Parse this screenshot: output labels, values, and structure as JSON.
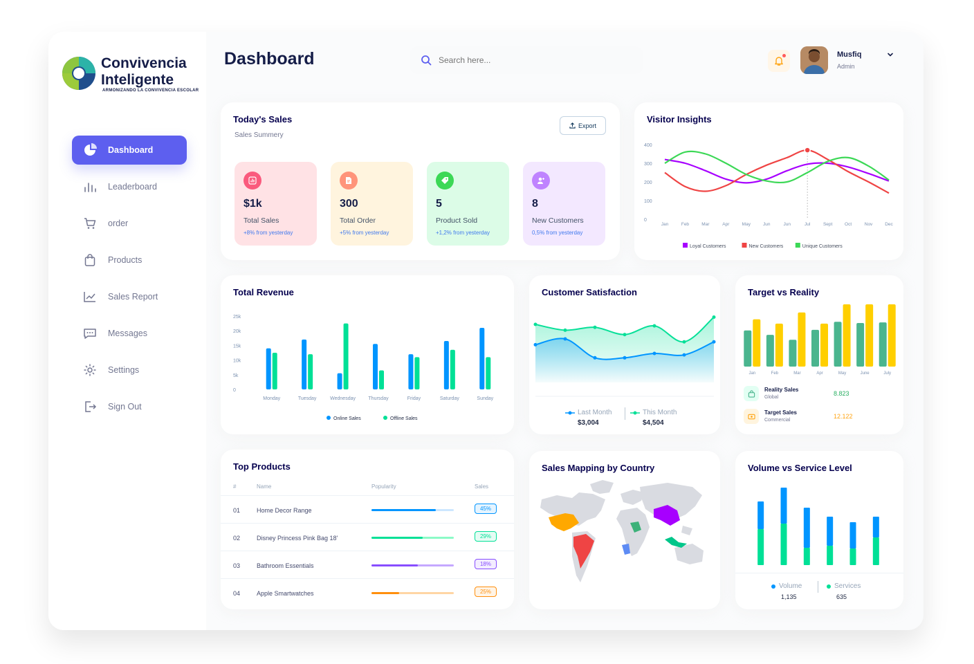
{
  "brand": {
    "name_line1": "Convivencia",
    "name_line2": "Inteligente",
    "tagline": "ARMONIZANDO LA CONVIVENCIA ESCOLAR"
  },
  "sidebar": {
    "items": [
      {
        "label": "Dashboard",
        "icon": "pie-chart-icon",
        "active": true
      },
      {
        "label": "Leaderboard",
        "icon": "bar-chart-icon"
      },
      {
        "label": "order",
        "icon": "cart-icon"
      },
      {
        "label": "Products",
        "icon": "shopping-bag-icon"
      },
      {
        "label": "Sales Report",
        "icon": "line-chart-icon"
      },
      {
        "label": "Messages",
        "icon": "message-icon"
      },
      {
        "label": "Settings",
        "icon": "gear-icon"
      },
      {
        "label": "Sign Out",
        "icon": "sign-out-icon"
      }
    ]
  },
  "header": {
    "title": "Dashboard",
    "search_placeholder": "Search here...",
    "user_name": "Musfiq",
    "user_role": "Admin"
  },
  "todays_sales": {
    "title": "Today's Sales",
    "subtitle": "Sales Summery",
    "export_label": "Export",
    "stats": [
      {
        "value": "$1k",
        "label": "Total Sales",
        "change": "+8% from yesterday",
        "bg": "#ffe2e5",
        "icon_bg": "#fa5a7d",
        "icon": "bar-chart-icon"
      },
      {
        "value": "300",
        "label": "Total Order",
        "change": "+5% from yesterday",
        "bg": "#fff4de",
        "icon_bg": "#ff947a",
        "icon": "document-icon"
      },
      {
        "value": "5",
        "label": "Product Sold",
        "change": "+1,2% from yesterday",
        "bg": "#dcfce7",
        "icon_bg": "#3cd856",
        "icon": "tag-icon"
      },
      {
        "value": "8",
        "label": "New Customers",
        "change": "0,5% from yesterday",
        "bg": "#f3e8ff",
        "icon_bg": "#bf83ff",
        "icon": "add-user-icon"
      }
    ]
  },
  "visitor_insights": {
    "title": "Visitor Insights"
  },
  "total_revenue": {
    "title": "Total Revenue"
  },
  "customer_satisfaction": {
    "title": "Customer Satisfaction",
    "last_label": "Last Month",
    "last_value": "$3,004",
    "this_label": "This Month",
    "this_value": "$4,504"
  },
  "target_reality": {
    "title": "Target vs Reality",
    "reality_label": "Reality Sales",
    "reality_sub": "Global",
    "reality_value": "8.823",
    "target_label": "Target Sales",
    "target_sub": "Commercial",
    "target_value": "12.122"
  },
  "top_products": {
    "title": "Top Products",
    "headers": [
      "#",
      "Name",
      "Popularity",
      "Sales"
    ],
    "rows": [
      {
        "num": "01",
        "name": "Home Decor Range",
        "pct": "45%",
        "pop": 0.78,
        "color": "#0095ff",
        "track": "#cde7ff"
      },
      {
        "num": "02",
        "name": "Disney Princess Pink Bag 18'",
        "pct": "29%",
        "pop": 0.62,
        "color": "#00e096",
        "track": "#8cfac7"
      },
      {
        "num": "03",
        "name": "Bathroom Essentials",
        "pct": "18%",
        "pop": 0.56,
        "color": "#884dff",
        "track": "#c5a8ff"
      },
      {
        "num": "04",
        "name": "Apple Smartwatches",
        "pct": "25%",
        "pop": 0.34,
        "color": "#ff8f0d",
        "track": "#ffd5a4"
      }
    ]
  },
  "sales_map": {
    "title": "Sales Mapping by Country"
  },
  "volume_service": {
    "title": "Volume vs Service Level",
    "volume_label": "Volume",
    "volume_value": "1,135",
    "services_label": "Services",
    "services_value": "635"
  },
  "chart_data": [
    {
      "type": "line",
      "name": "Visitor Insights",
      "x": [
        "Jan",
        "Feb",
        "Mar",
        "Apr",
        "May",
        "Jun",
        "Jun",
        "Jul",
        "Sept",
        "Oct",
        "Nov",
        "Dec"
      ],
      "yticks": [
        "400",
        "300",
        "200",
        "100",
        "0"
      ],
      "ylim": [
        0,
        400
      ],
      "series": [
        {
          "name": "Loyal Customers",
          "color": "#a700ff",
          "values": [
            320,
            300,
            260,
            215,
            195,
            215,
            260,
            295,
            300,
            280,
            245,
            205
          ]
        },
        {
          "name": "New Customers",
          "color": "#ef4444",
          "values": [
            250,
            175,
            150,
            180,
            240,
            290,
            330,
            370,
            320,
            255,
            200,
            140
          ]
        },
        {
          "name": "Unique Customers",
          "color": "#3cd856",
          "values": [
            300,
            360,
            350,
            300,
            240,
            205,
            200,
            250,
            310,
            330,
            285,
            210
          ]
        }
      ]
    },
    {
      "type": "bar",
      "name": "Total Revenue",
      "categories": [
        "Monday",
        "Tuesday",
        "Wednesday",
        "Thursday",
        "Friday",
        "Saturday",
        "Sunday"
      ],
      "yticks": [
        "25k",
        "20k",
        "15k",
        "10k",
        "5k",
        "0"
      ],
      "ylim": [
        0,
        25000
      ],
      "series": [
        {
          "name": "Online Sales",
          "color": "#0095ff",
          "values": [
            14000,
            17000,
            5500,
            15500,
            12000,
            16500,
            21000
          ]
        },
        {
          "name": "Offline Sales",
          "color": "#00e096",
          "values": [
            12500,
            12000,
            22500,
            6500,
            11000,
            13500,
            11000
          ]
        }
      ]
    },
    {
      "type": "area",
      "name": "Customer Satisfaction",
      "x": [
        1,
        2,
        3,
        4,
        5,
        6,
        7
      ],
      "series": [
        {
          "name": "Last Month",
          "color": "#0095ff",
          "values": [
            2.6,
            3.0,
            1.7,
            1.7,
            2.0,
            1.9,
            2.8
          ]
        },
        {
          "name": "This Month",
          "color": "#07e098",
          "values": [
            4.0,
            3.6,
            3.8,
            3.3,
            3.9,
            2.8,
            4.5
          ]
        }
      ]
    },
    {
      "type": "bar",
      "name": "Target vs Reality",
      "categories": [
        "Jan",
        "Feb",
        "Mar",
        "Apr",
        "May",
        "June",
        "July"
      ],
      "series": [
        {
          "name": "Reality Sales",
          "color": "#4ab58e",
          "values": [
            0.58,
            0.51,
            0.43,
            0.59,
            0.72,
            0.7,
            0.71
          ]
        },
        {
          "name": "Target Sales",
          "color": "#ffcf00",
          "values": [
            0.76,
            0.69,
            0.87,
            0.69,
            1.0,
            1.0,
            1.0
          ]
        }
      ]
    },
    {
      "type": "bar",
      "name": "Volume vs Service Level",
      "stacked": true,
      "categories": [
        "1",
        "2",
        "3",
        "4",
        "5",
        "6"
      ],
      "series": [
        {
          "name": "Volume",
          "color": "#0095ff",
          "values": [
            40,
            52,
            58,
            42,
            38,
            30
          ]
        },
        {
          "name": "Services",
          "color": "#00e096",
          "values": [
            52,
            60,
            25,
            28,
            24,
            40
          ]
        }
      ]
    }
  ]
}
